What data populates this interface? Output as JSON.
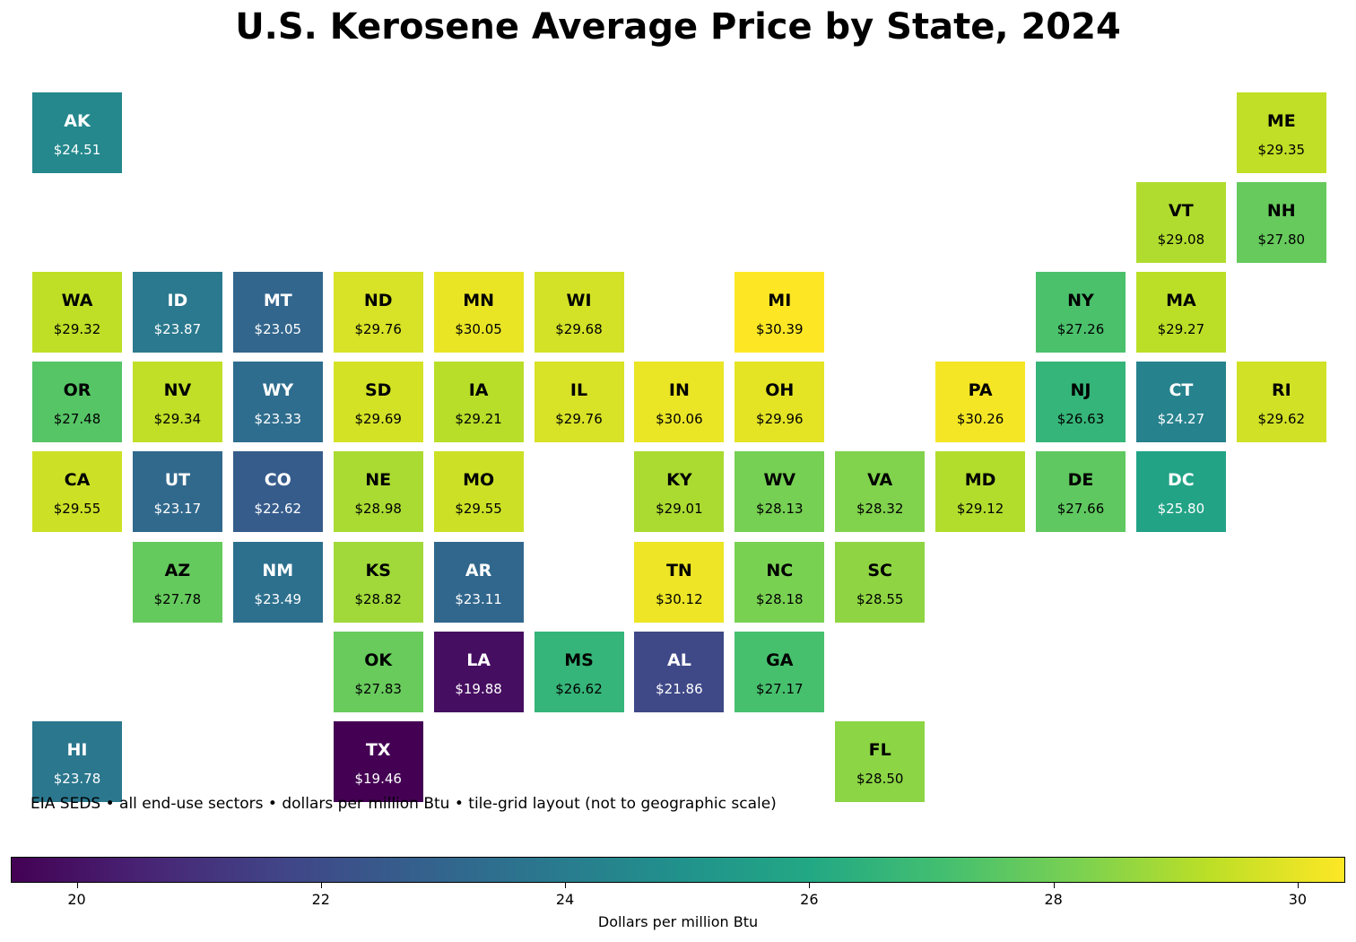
{
  "title": "U.S. Kerosene Average Price by State, 2024",
  "note": "EIA SEDS • all end-use sectors • dollars per million Btu • tile-grid layout (not to geographic scale)",
  "colorbar": {
    "label": "Dollars per million Btu",
    "min": 19.46,
    "max": 30.39,
    "ticks": [
      "20",
      "22",
      "24",
      "26",
      "28",
      "30"
    ],
    "colormap": [
      "#440154",
      "#482475",
      "#414487",
      "#355f8d",
      "#2a788e",
      "#21918c",
      "#22a884",
      "#44bf70",
      "#7ad151",
      "#bddf26",
      "#fde725"
    ]
  },
  "chart_data": {
    "type": "heatmap",
    "title": "U.S. Kerosene Average Price by State, 2024",
    "states": [
      {
        "abbr": "AK",
        "price": "$24.51",
        "value": 24.51,
        "row": 0,
        "col": 0
      },
      {
        "abbr": "ME",
        "price": "$29.35",
        "value": 29.35,
        "row": 0,
        "col": 12
      },
      {
        "abbr": "VT",
        "price": "$29.08",
        "value": 29.08,
        "row": 1,
        "col": 11
      },
      {
        "abbr": "NH",
        "price": "$27.80",
        "value": 27.8,
        "row": 1,
        "col": 12
      },
      {
        "abbr": "WA",
        "price": "$29.32",
        "value": 29.32,
        "row": 2,
        "col": 0
      },
      {
        "abbr": "ID",
        "price": "$23.87",
        "value": 23.87,
        "row": 2,
        "col": 1
      },
      {
        "abbr": "MT",
        "price": "$23.05",
        "value": 23.05,
        "row": 2,
        "col": 2
      },
      {
        "abbr": "ND",
        "price": "$29.76",
        "value": 29.76,
        "row": 2,
        "col": 3
      },
      {
        "abbr": "MN",
        "price": "$30.05",
        "value": 30.05,
        "row": 2,
        "col": 4
      },
      {
        "abbr": "WI",
        "price": "$29.68",
        "value": 29.68,
        "row": 2,
        "col": 5
      },
      {
        "abbr": "MI",
        "price": "$30.39",
        "value": 30.39,
        "row": 2,
        "col": 7
      },
      {
        "abbr": "NY",
        "price": "$27.26",
        "value": 27.26,
        "row": 2,
        "col": 10
      },
      {
        "abbr": "MA",
        "price": "$29.27",
        "value": 29.27,
        "row": 2,
        "col": 11
      },
      {
        "abbr": "OR",
        "price": "$27.48",
        "value": 27.48,
        "row": 3,
        "col": 0
      },
      {
        "abbr": "NV",
        "price": "$29.34",
        "value": 29.34,
        "row": 3,
        "col": 1
      },
      {
        "abbr": "WY",
        "price": "$23.33",
        "value": 23.33,
        "row": 3,
        "col": 2
      },
      {
        "abbr": "SD",
        "price": "$29.69",
        "value": 29.69,
        "row": 3,
        "col": 3
      },
      {
        "abbr": "IA",
        "price": "$29.21",
        "value": 29.21,
        "row": 3,
        "col": 4
      },
      {
        "abbr": "IL",
        "price": "$29.76",
        "value": 29.76,
        "row": 3,
        "col": 5
      },
      {
        "abbr": "IN",
        "price": "$30.06",
        "value": 30.06,
        "row": 3,
        "col": 6
      },
      {
        "abbr": "OH",
        "price": "$29.96",
        "value": 29.96,
        "row": 3,
        "col": 7
      },
      {
        "abbr": "PA",
        "price": "$30.26",
        "value": 30.26,
        "row": 3,
        "col": 9
      },
      {
        "abbr": "NJ",
        "price": "$26.63",
        "value": 26.63,
        "row": 3,
        "col": 10
      },
      {
        "abbr": "CT",
        "price": "$24.27",
        "value": 24.27,
        "row": 3,
        "col": 11
      },
      {
        "abbr": "RI",
        "price": "$29.62",
        "value": 29.62,
        "row": 3,
        "col": 12
      },
      {
        "abbr": "CA",
        "price": "$29.55",
        "value": 29.55,
        "row": 4,
        "col": 0
      },
      {
        "abbr": "UT",
        "price": "$23.17",
        "value": 23.17,
        "row": 4,
        "col": 1
      },
      {
        "abbr": "CO",
        "price": "$22.62",
        "value": 22.62,
        "row": 4,
        "col": 2
      },
      {
        "abbr": "NE",
        "price": "$28.98",
        "value": 28.98,
        "row": 4,
        "col": 3
      },
      {
        "abbr": "MO",
        "price": "$29.55",
        "value": 29.55,
        "row": 4,
        "col": 4
      },
      {
        "abbr": "KY",
        "price": "$29.01",
        "value": 29.01,
        "row": 4,
        "col": 6
      },
      {
        "abbr": "WV",
        "price": "$28.13",
        "value": 28.13,
        "row": 4,
        "col": 7
      },
      {
        "abbr": "VA",
        "price": "$28.32",
        "value": 28.32,
        "row": 4,
        "col": 8
      },
      {
        "abbr": "MD",
        "price": "$29.12",
        "value": 29.12,
        "row": 4,
        "col": 9
      },
      {
        "abbr": "DE",
        "price": "$27.66",
        "value": 27.66,
        "row": 4,
        "col": 10
      },
      {
        "abbr": "DC",
        "price": "$25.80",
        "value": 25.8,
        "row": 4,
        "col": 11
      },
      {
        "abbr": "AZ",
        "price": "$27.78",
        "value": 27.78,
        "row": 5,
        "col": 1
      },
      {
        "abbr": "NM",
        "price": "$23.49",
        "value": 23.49,
        "row": 5,
        "col": 2
      },
      {
        "abbr": "KS",
        "price": "$28.82",
        "value": 28.82,
        "row": 5,
        "col": 3
      },
      {
        "abbr": "AR",
        "price": "$23.11",
        "value": 23.11,
        "row": 5,
        "col": 4
      },
      {
        "abbr": "TN",
        "price": "$30.12",
        "value": 30.12,
        "row": 5,
        "col": 6
      },
      {
        "abbr": "NC",
        "price": "$28.18",
        "value": 28.18,
        "row": 5,
        "col": 7
      },
      {
        "abbr": "SC",
        "price": "$28.55",
        "value": 28.55,
        "row": 5,
        "col": 8
      },
      {
        "abbr": "OK",
        "price": "$27.83",
        "value": 27.83,
        "row": 6,
        "col": 3
      },
      {
        "abbr": "LA",
        "price": "$19.88",
        "value": 19.88,
        "row": 6,
        "col": 4
      },
      {
        "abbr": "MS",
        "price": "$26.62",
        "value": 26.62,
        "row": 6,
        "col": 5
      },
      {
        "abbr": "AL",
        "price": "$21.86",
        "value": 21.86,
        "row": 6,
        "col": 6
      },
      {
        "abbr": "GA",
        "price": "$27.17",
        "value": 27.17,
        "row": 6,
        "col": 7
      },
      {
        "abbr": "HI",
        "price": "$23.78",
        "value": 23.78,
        "row": 7,
        "col": 0
      },
      {
        "abbr": "TX",
        "price": "$19.46",
        "value": 19.46,
        "row": 7,
        "col": 3
      },
      {
        "abbr": "FL",
        "price": "$28.50",
        "value": 28.5,
        "row": 7,
        "col": 8
      }
    ]
  }
}
